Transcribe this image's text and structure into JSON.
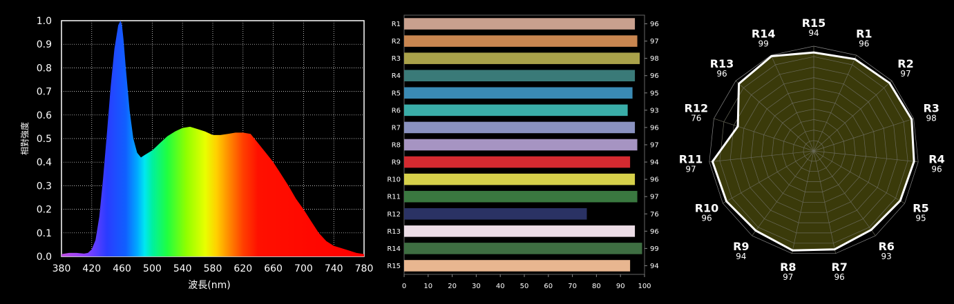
{
  "chart_data": [
    {
      "type": "area",
      "xlabel": "波長(nm)",
      "ylabel": "相對強度",
      "xlim": [
        380,
        780
      ],
      "ylim": [
        0,
        1.0
      ],
      "x_ticks": [
        "380",
        "420",
        "460",
        "500",
        "540",
        "580",
        "620",
        "660",
        "700",
        "740",
        "780"
      ],
      "y_ticks": [
        "0.0",
        "0.1",
        "0.2",
        "0.3",
        "0.4",
        "0.5",
        "0.6",
        "0.7",
        "0.8",
        "0.9",
        "1.0"
      ],
      "grid": true,
      "x": [
        380,
        390,
        400,
        410,
        415,
        420,
        425,
        430,
        435,
        440,
        445,
        450,
        455,
        458,
        460,
        462,
        465,
        470,
        475,
        480,
        485,
        490,
        495,
        500,
        505,
        510,
        520,
        530,
        540,
        550,
        560,
        570,
        580,
        590,
        600,
        610,
        620,
        630,
        640,
        650,
        660,
        670,
        680,
        690,
        700,
        710,
        720,
        730,
        740,
        750,
        760,
        770,
        780
      ],
      "y": [
        0.01,
        0.015,
        0.015,
        0.012,
        0.015,
        0.03,
        0.07,
        0.17,
        0.33,
        0.52,
        0.72,
        0.88,
        0.98,
        1.0,
        0.98,
        0.92,
        0.8,
        0.62,
        0.5,
        0.44,
        0.42,
        0.43,
        0.44,
        0.45,
        0.465,
        0.48,
        0.51,
        0.53,
        0.545,
        0.55,
        0.54,
        0.53,
        0.515,
        0.515,
        0.52,
        0.525,
        0.525,
        0.52,
        0.48,
        0.44,
        0.4,
        0.35,
        0.3,
        0.245,
        0.2,
        0.15,
        0.1,
        0.065,
        0.045,
        0.035,
        0.025,
        0.015,
        0.01
      ]
    },
    {
      "type": "bar",
      "orientation": "horizontal",
      "categories": [
        "R1",
        "R2",
        "R3",
        "R4",
        "R5",
        "R6",
        "R7",
        "R8",
        "R9",
        "R10",
        "R11",
        "R12",
        "R13",
        "R14",
        "R15"
      ],
      "values": [
        96,
        97,
        98,
        96,
        95,
        93,
        96,
        97,
        94,
        96,
        97,
        76,
        96,
        99,
        94
      ],
      "value_labels": [
        "96",
        "97",
        "98",
        "96",
        "95",
        "93",
        "96",
        "97",
        "94",
        "96",
        "97",
        "76",
        "96",
        "99",
        "94"
      ],
      "colors": [
        "#c8a08e",
        "#c98650",
        "#aaa24a",
        "#3a7a78",
        "#3a8ab4",
        "#3aada8",
        "#8a92c0",
        "#a694c2",
        "#d42a30",
        "#d6d04a",
        "#3a7840",
        "#2a3264",
        "#ecdde6",
        "#3e6e42",
        "#e8b690"
      ],
      "xlim": [
        0,
        100
      ],
      "x_ticks": [
        "0",
        "10",
        "20",
        "30",
        "40",
        "50",
        "60",
        "70",
        "80",
        "90",
        "100"
      ]
    },
    {
      "type": "radar",
      "categories": [
        "R15",
        "R1",
        "R2",
        "R3",
        "R4",
        "R5",
        "R6",
        "R7",
        "R8",
        "R9",
        "R10",
        "R11",
        "R12",
        "R13",
        "R14"
      ],
      "values": [
        94,
        96,
        97,
        98,
        96,
        95,
        93,
        96,
        97,
        94,
        96,
        97,
        76,
        96,
        99
      ],
      "value_labels": [
        "94",
        "96",
        "97",
        "98",
        "96",
        "95",
        "93",
        "96",
        "97",
        "94",
        "96",
        "97",
        "76",
        "96",
        "99"
      ],
      "range": [
        0,
        100
      ],
      "fill_color": "#3a3a0a",
      "line_color": "#ffffff"
    }
  ]
}
